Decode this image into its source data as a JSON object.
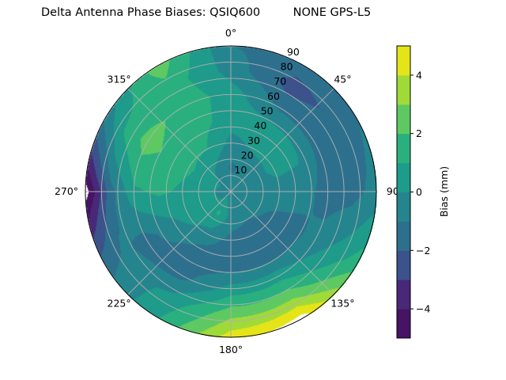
{
  "chart_data": {
    "type": "heatmap",
    "subtype": "polar-filled-contour",
    "title": "Delta Antenna Phase Biases: QSIQ600         NONE GPS-L5",
    "angular_axis": {
      "direction": "clockwise",
      "zero_location": "top",
      "tick_labels": [
        "0°",
        "45°",
        "90°",
        "135°",
        "180°",
        "225°",
        "270°",
        "315°"
      ],
      "tick_values": [
        0,
        45,
        90,
        135,
        180,
        225,
        270,
        315
      ]
    },
    "radial_axis": {
      "range": [
        0,
        90
      ],
      "tick_values": [
        10,
        20,
        30,
        40,
        50,
        60,
        70,
        80,
        90
      ],
      "tick_labels": [
        "10",
        "20",
        "30",
        "40",
        "50",
        "60",
        "70",
        "80",
        "90"
      ]
    },
    "grid": true,
    "colorbar": {
      "label": "Bias (mm)",
      "colormap": "viridis",
      "levels": [
        -5,
        -4,
        -3,
        -2,
        -1,
        0,
        1,
        2,
        3,
        4,
        5
      ],
      "tick_values": [
        -4,
        -2,
        0,
        2,
        4
      ],
      "tick_labels": [
        "−4",
        "−2",
        "0",
        "2",
        "4"
      ],
      "band_colors": [
        "#471365",
        "#482878",
        "#3b528b",
        "#2d708e",
        "#25858e",
        "#1e9b8a",
        "#2ab07f",
        "#5ec962",
        "#a0da39",
        "#e5e419"
      ],
      "placement": "right"
    },
    "grid_azimuths": [
      0,
      30,
      60,
      90,
      120,
      150,
      180,
      210,
      240,
      270,
      300,
      330
    ],
    "grid_radii": [
      0,
      15,
      30,
      45,
      60,
      75,
      90
    ],
    "values": [
      [
        -0.4,
        -0.4,
        -0.4,
        -0.4,
        -0.4,
        -0.4,
        -0.4,
        -0.4,
        -0.4,
        -0.4,
        -0.4,
        -0.4
      ],
      [
        -1.2,
        -0.8,
        -0.5,
        -0.5,
        -0.6,
        -0.8,
        -0.5,
        1.2,
        0.3,
        0.2,
        0.4,
        -0.3
      ],
      [
        -0.3,
        0.2,
        0.3,
        -0.4,
        -1.2,
        -1.5,
        -1.3,
        -0.5,
        0.4,
        0.8,
        1.2,
        1.0
      ],
      [
        0.4,
        0.5,
        0.2,
        -0.6,
        -1.3,
        -1.6,
        -1.6,
        -1.5,
        -0.6,
        1.2,
        1.8,
        1.6
      ],
      [
        0.5,
        -1.2,
        -1.3,
        -1.5,
        -0.6,
        0.6,
        0.4,
        -1.3,
        -1.4,
        0.8,
        2.4,
        1.7
      ],
      [
        -0.4,
        -2.5,
        -1.6,
        -1.4,
        0.4,
        2.8,
        2.6,
        0.3,
        -0.8,
        -1.5,
        1.2,
        1.6
      ],
      [
        -1.0,
        -1.4,
        -1.0,
        -0.6,
        1.6,
        5.5,
        4.6,
        1.0,
        -1.5,
        -5.5,
        -0.8,
        2.6
      ]
    ]
  }
}
